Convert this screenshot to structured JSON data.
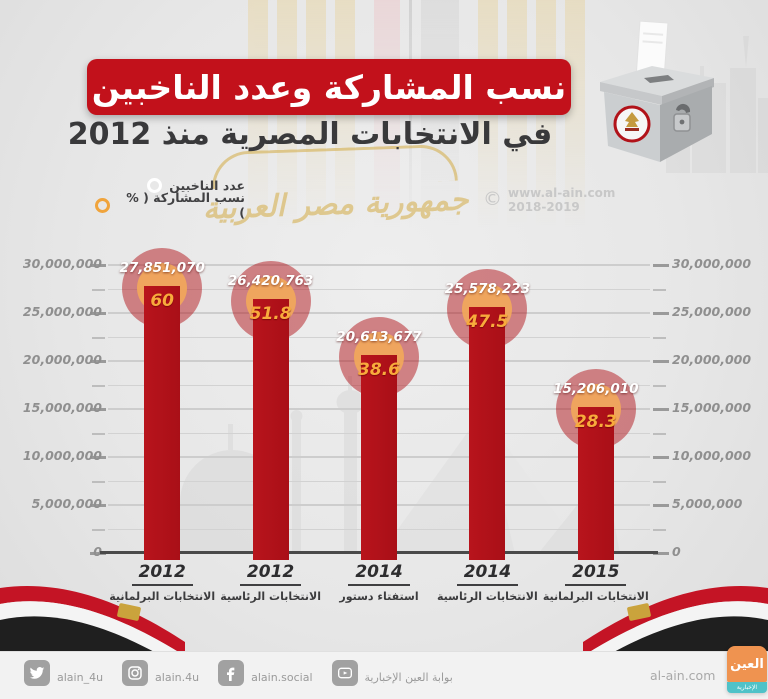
{
  "header": {
    "title": "نسب المشاركة وعدد الناخبين",
    "subtitle": "في الانتخابات المصرية منذ 2012"
  },
  "legend": {
    "voters_label": "عدد الناخبين",
    "participation_label": "نسب المشاركة ( % )"
  },
  "credit": {
    "copyright": "©",
    "site": "www.al-ain.com",
    "years": "2018-2019"
  },
  "background_watermark": {
    "calligraphy": "جمهورية مصر العربية"
  },
  "chart_data": {
    "type": "bar",
    "title": "نسب المشاركة وعدد الناخبين في الانتخابات المصرية منذ 2012",
    "ylim": [
      0,
      30000000
    ],
    "grid": true,
    "legend_position": "top-left",
    "categories": [
      {
        "year": "2012",
        "name": "الانتخابات البرلمانية"
      },
      {
        "year": "2012",
        "name": "الانتخابات الرئاسية"
      },
      {
        "year": "2014",
        "name": "استفتاء دستور"
      },
      {
        "year": "2014",
        "name": "الانتخابات الرئاسية"
      },
      {
        "year": "2015",
        "name": "الانتخابات البرلمانية"
      }
    ],
    "series": [
      {
        "name": "عدد الناخبين",
        "values": [
          27851070,
          26420763,
          20613677,
          25578223,
          15206010
        ],
        "labels": [
          "27,851,070",
          "26,420,763",
          "20,613,677",
          "25,578,223",
          "15,206,010"
        ]
      },
      {
        "name": "نسب المشاركة ( % )",
        "values": [
          60,
          51.8,
          38.6,
          47.5,
          28.3
        ],
        "labels": [
          "60",
          "51.8",
          "38.6",
          "47.5",
          "28.3"
        ]
      }
    ],
    "y_axis": {
      "ticks": [
        {
          "label": "30,000,000",
          "value": 30000000
        },
        {
          "label": "25,000,000",
          "value": 25000000
        },
        {
          "label": "20,000,000",
          "value": 20000000
        },
        {
          "label": "15,000,000",
          "value": 15000000
        },
        {
          "label": "10,000,000",
          "value": 10000000
        },
        {
          "label": "5,000,000",
          "value": 5000000
        },
        {
          "label": "0",
          "value": 0
        }
      ],
      "minor_ticks": [
        2500000,
        7500000,
        12500000,
        17500000,
        22500000,
        27500000
      ]
    },
    "colors": {
      "bar": "#b1121a",
      "halo": "#b2161c",
      "inner_circle": "#f0a65c",
      "value_text": "#ffffff",
      "pct_text": "#f8ab3c",
      "banner": "#c2111b"
    }
  },
  "footer": {
    "social": [
      {
        "icon": "twitter",
        "label": "alain_4u"
      },
      {
        "icon": "instagram",
        "label": "alain.4u"
      },
      {
        "icon": "facebook",
        "label": "alain.social"
      },
      {
        "icon": "youtube",
        "label": "بوابة العين الإخبارية"
      }
    ],
    "site": "al-ain.com",
    "logo": {
      "main": "العين",
      "sub": "الإخبارية"
    }
  }
}
